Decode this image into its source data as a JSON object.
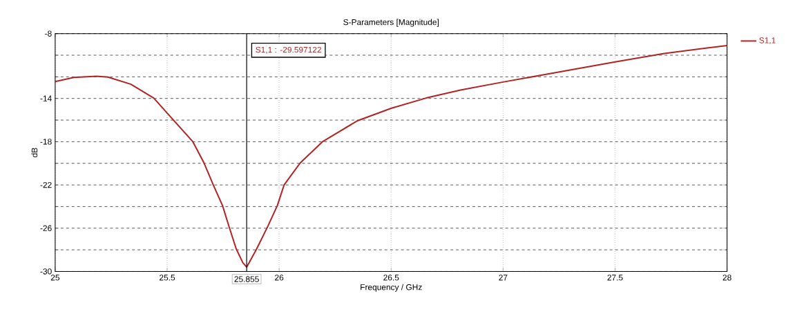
{
  "chart_data": {
    "type": "line",
    "title": "S-Parameters [Magnitude]",
    "xlabel": "Frequency / GHz",
    "ylabel": "dB",
    "xlim": [
      25,
      28
    ],
    "ylim": [
      -30,
      -8
    ],
    "xticks": [
      25,
      25.5,
      26,
      26.5,
      27,
      27.5,
      28
    ],
    "yticks": [
      -30,
      {
        "value": -28,
        "label": null
      },
      -26,
      {
        "value": -24,
        "label": null
      },
      -22,
      {
        "value": -20,
        "label": null
      },
      -18,
      {
        "value": -16,
        "label": null
      },
      -14,
      {
        "value": -12,
        "label": null
      },
      {
        "value": -10,
        "label": null
      },
      -8
    ],
    "grid": true,
    "legend": "top right",
    "series": [
      {
        "name": "S1,1",
        "color": "#b22222",
        "x": [
          25.0,
          25.083,
          25.185,
          25.236,
          25.338,
          25.44,
          25.522,
          25.614,
          25.665,
          25.706,
          25.747,
          25.777,
          25.808,
          25.838,
          25.855,
          25.9,
          25.95,
          25.992,
          26.022,
          26.093,
          26.195,
          26.348,
          26.5,
          26.656,
          26.81,
          27.0,
          27.17,
          27.5,
          27.72,
          28.0
        ],
        "values": [
          -12.44,
          -12.06,
          -11.95,
          -12.02,
          -12.69,
          -13.96,
          -15.86,
          -17.98,
          -19.99,
          -22.0,
          -23.9,
          -25.9,
          -27.9,
          -29.2,
          -29.6,
          -27.9,
          -25.8,
          -23.9,
          -22.0,
          -19.99,
          -17.98,
          -16.08,
          -14.91,
          -13.96,
          -13.22,
          -12.48,
          -11.85,
          -10.62,
          -9.84,
          -9.1
        ]
      }
    ],
    "ref_lines": [
      {
        "axis": "x",
        "value": 25.855,
        "label": "25.855",
        "color": "#000000"
      }
    ],
    "annotations": [
      "S1,1 : -29.597122"
    ]
  }
}
